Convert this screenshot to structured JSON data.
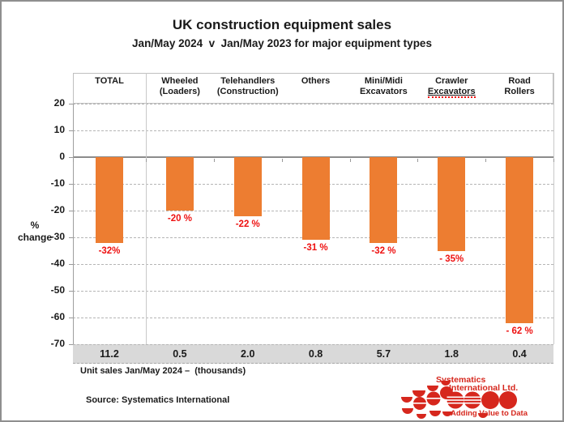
{
  "colors": {
    "bar_orange": "#ED7D31",
    "label_red": "#EE1111",
    "band_gray": "#D9D9D9",
    "grid_gray": "#B5B5B5",
    "zero_line_gray": "#8C8C8C",
    "logo_red": "#D6271D"
  },
  "header": {
    "title": "UK construction equipment sales",
    "subtitle": "Jan/May 2024  v  Jan/May 2023 for major equipment types"
  },
  "axis": {
    "ylabel_line1": "%",
    "ylabel_line2": "change",
    "ticks": [
      20,
      10,
      0,
      -10,
      -20,
      -30,
      -40,
      -50,
      -60,
      -70
    ],
    "ymin": -70,
    "ymax": 20
  },
  "columns": [
    {
      "line1": "TOTAL",
      "line2": "",
      "squiggle": false
    },
    {
      "line1": "Wheeled",
      "line2": "(Loaders)",
      "squiggle": false
    },
    {
      "line1": "Telehandlers",
      "line2": "(Construction)",
      "squiggle": false
    },
    {
      "line1": "Others",
      "line2": "",
      "squiggle": false
    },
    {
      "line1": "Mini/Midi",
      "line2": "Excavators",
      "squiggle": false
    },
    {
      "line1": "Crawler",
      "line2": "Excavators",
      "squiggle": true
    },
    {
      "line1": "Road",
      "line2": "Rollers",
      "squiggle": false
    }
  ],
  "chart_data": {
    "type": "bar",
    "title": "UK construction equipment sales",
    "subtitle": "Jan/May 2024  v  Jan/May 2023 for major equipment types",
    "ylabel": "% change",
    "ylim": [
      -70,
      20
    ],
    "grid": "horizontal-dashed",
    "legend": "none",
    "categories": [
      "TOTAL",
      "Wheeled (Loaders)",
      "Telehandlers (Construction)",
      "Others",
      "Mini/Midi Excavators",
      "Crawler Excavators",
      "Road Rollers"
    ],
    "values": [
      -32,
      -20,
      -22,
      -31,
      -32,
      -35,
      -62
    ],
    "bar_labels": [
      "-32%",
      "-20 %",
      "-22 %",
      "-31 %",
      "-32 %",
      "- 35%",
      "- 62 %"
    ],
    "unit_sales_thousands": [
      11.2,
      0.5,
      2.0,
      0.8,
      5.7,
      1.8,
      0.4
    ],
    "unit_sales_display": [
      "11.2",
      "0.5",
      "2.0",
      "0.8",
      "5.7",
      "1.8",
      "0.4"
    ]
  },
  "footer": {
    "unit_note": "Unit sales Jan/May 2024 –  (thousands)",
    "source": "Source: Systematics International"
  },
  "logo": {
    "name_line1": "Systematics",
    "name_line2": "International Ltd.",
    "tagline": "Adding Value to Data"
  }
}
